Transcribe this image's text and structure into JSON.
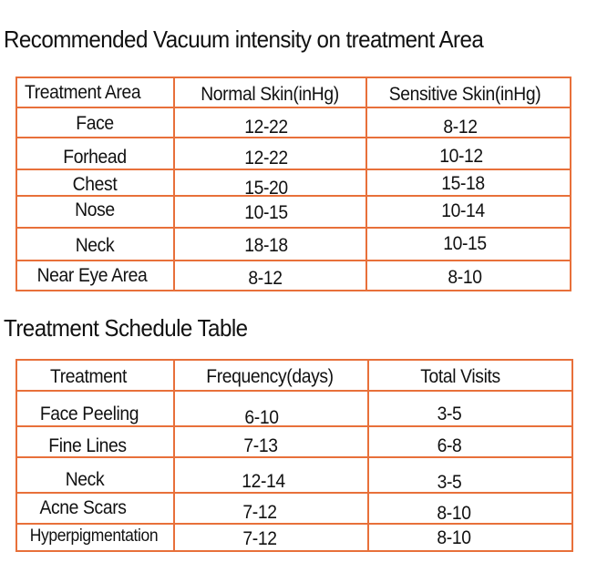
{
  "vacuum": {
    "title": "Recommended Vacuum intensity on treatment Area",
    "headers": [
      "Treatment Area",
      "Normal Skin(inHg)",
      "Sensitive Skin(inHg)"
    ],
    "rows": [
      [
        "Face",
        "12-22",
        "8-12"
      ],
      [
        "Forhead",
        "12-22",
        "10-12"
      ],
      [
        "Chest",
        "15-20",
        "15-18"
      ],
      [
        "Nose",
        "10-15",
        "10-14"
      ],
      [
        "Neck",
        "18-18",
        "10-15"
      ],
      [
        "Near Eye Area",
        "8-12",
        "8-10"
      ]
    ]
  },
  "schedule": {
    "title": "Treatment Schedule Table",
    "headers": [
      "Treatment",
      "Frequency(days)",
      "Total Visits"
    ],
    "rows": [
      [
        "Face Peeling",
        "6-10",
        "3-5"
      ],
      [
        "Fine Lines",
        "7-13",
        "6-8"
      ],
      [
        "Neck",
        "12-14",
        "3-5"
      ],
      [
        "Acne Scars",
        "7-12",
        "8-10"
      ],
      [
        "Hyperpigmentation",
        "7-12",
        "8-10"
      ]
    ]
  }
}
